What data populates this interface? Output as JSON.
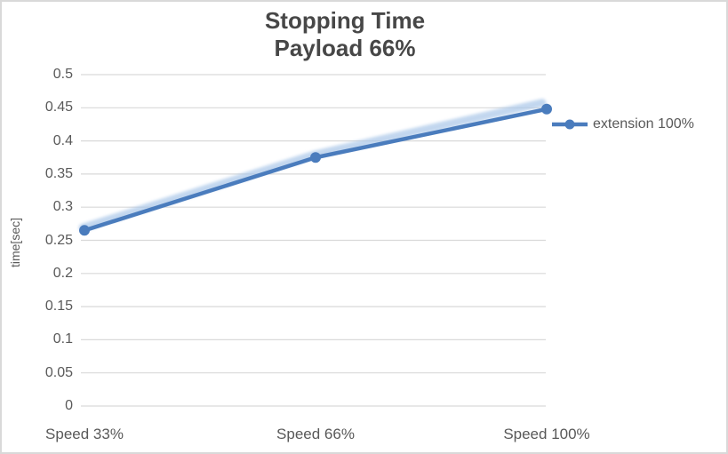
{
  "header": {
    "title_line1": "Stopping Time",
    "title_line2": "Payload 66%"
  },
  "chart_data": {
    "type": "line",
    "title": "Stopping Time Payload 66%",
    "categories": [
      "Speed 33%",
      "Speed 66%",
      "Speed 100%"
    ],
    "series": [
      {
        "name": "extension 100%",
        "values": [
          0.265,
          0.375,
          0.448
        ],
        "color": "#4a7cbd",
        "marker": "circle",
        "glow_color": "#a9c6e8"
      }
    ],
    "xlabel": "",
    "ylabel": "time[sec]",
    "ylim": [
      0,
      0.5
    ],
    "yticks": [
      0,
      0.05,
      0.1,
      0.15,
      0.2,
      0.25,
      0.3,
      0.35,
      0.4,
      0.45,
      0.5
    ],
    "grid": true,
    "gridline_color": "#d9d9d9",
    "tick_text_color": "#595959",
    "title_color": "#474747",
    "chart_border_color": "#d9d9d9",
    "legend_position": "right"
  }
}
